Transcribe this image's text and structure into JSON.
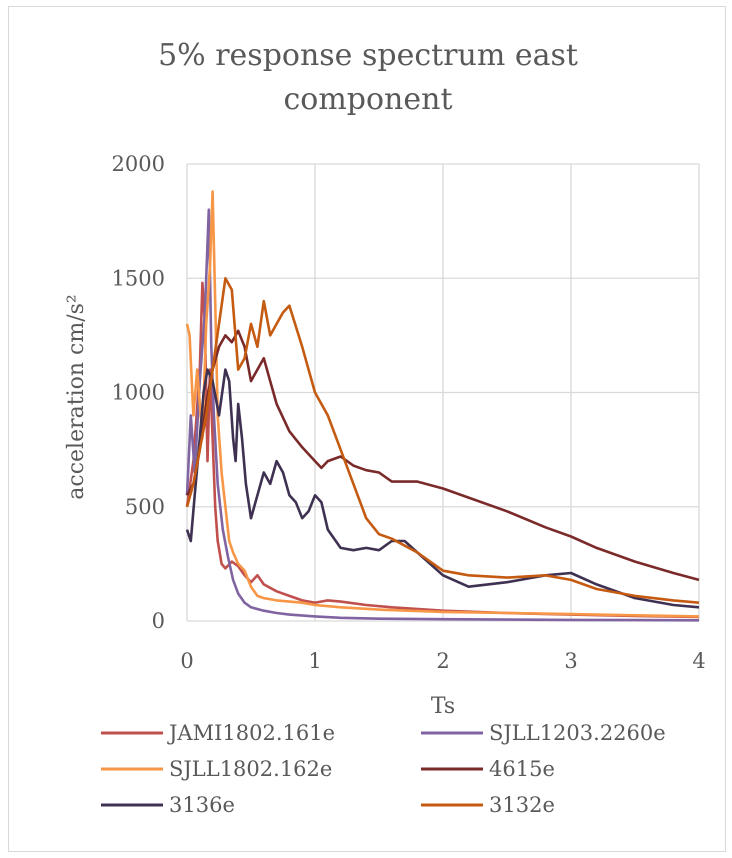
{
  "chart_data": {
    "type": "line",
    "title_lines": [
      "5% response spectrum east",
      "component"
    ],
    "xlabel": "Ts",
    "ylabel": "acceleration  cm/s²",
    "xlim": [
      0,
      4
    ],
    "ylim": [
      0,
      2000
    ],
    "xticks": [
      0,
      1,
      2,
      3,
      4
    ],
    "yticks": [
      0,
      500,
      1000,
      1500,
      2000
    ],
    "grid": true,
    "legend_position": "bottom",
    "series": [
      {
        "name": "JAMI1802.161e",
        "color": "#c0504d",
        "x": [
          0,
          0.05,
          0.1,
          0.12,
          0.14,
          0.16,
          0.18,
          0.2,
          0.22,
          0.24,
          0.27,
          0.3,
          0.35,
          0.4,
          0.45,
          0.5,
          0.55,
          0.6,
          0.7,
          0.8,
          0.9,
          1.0,
          1.1,
          1.2,
          1.4,
          1.6,
          2.0,
          2.5,
          3.0,
          3.5,
          4.0
        ],
        "y": [
          500,
          700,
          1100,
          1480,
          1300,
          700,
          1100,
          800,
          500,
          350,
          250,
          230,
          260,
          240,
          200,
          170,
          200,
          160,
          130,
          110,
          90,
          80,
          90,
          85,
          70,
          60,
          45,
          35,
          28,
          22,
          18
        ]
      },
      {
        "name": "SJLL1203.2260e",
        "color": "#8064a2",
        "x": [
          0,
          0.03,
          0.06,
          0.1,
          0.14,
          0.17,
          0.19,
          0.21,
          0.24,
          0.28,
          0.32,
          0.36,
          0.4,
          0.45,
          0.5,
          0.6,
          0.7,
          0.8,
          1.0,
          1.2,
          1.5,
          2.0,
          2.5,
          3.0,
          3.5,
          4.0
        ],
        "y": [
          550,
          900,
          650,
          1050,
          1350,
          1800,
          1200,
          900,
          600,
          400,
          280,
          180,
          120,
          80,
          60,
          45,
          35,
          28,
          20,
          14,
          10,
          8,
          6,
          5,
          4,
          3
        ]
      },
      {
        "name": "SJLL1802.162e",
        "color": "#f79646",
        "x": [
          0,
          0.02,
          0.05,
          0.08,
          0.12,
          0.15,
          0.18,
          0.2,
          0.22,
          0.24,
          0.27,
          0.3,
          0.33,
          0.36,
          0.4,
          0.45,
          0.5,
          0.55,
          0.6,
          0.7,
          0.8,
          0.9,
          1.0,
          1.2,
          1.5,
          2.0,
          2.5,
          3.0,
          3.5,
          4.0
        ],
        "y": [
          1300,
          1250,
          900,
          1100,
          800,
          1300,
          1550,
          1880,
          1400,
          900,
          650,
          500,
          350,
          300,
          250,
          220,
          150,
          110,
          100,
          90,
          85,
          80,
          70,
          60,
          50,
          40,
          35,
          30,
          25,
          20
        ]
      },
      {
        "name": "4615e",
        "color": "#7b2a2a",
        "x": [
          0,
          0.05,
          0.1,
          0.15,
          0.2,
          0.25,
          0.3,
          0.35,
          0.4,
          0.45,
          0.5,
          0.55,
          0.6,
          0.65,
          0.7,
          0.8,
          0.9,
          1.0,
          1.05,
          1.1,
          1.2,
          1.3,
          1.4,
          1.5,
          1.6,
          1.8,
          2.0,
          2.2,
          2.5,
          2.8,
          3.0,
          3.2,
          3.5,
          3.8,
          4.0
        ],
        "y": [
          550,
          600,
          750,
          950,
          1100,
          1200,
          1250,
          1220,
          1270,
          1200,
          1050,
          1100,
          1150,
          1050,
          950,
          830,
          760,
          700,
          670,
          700,
          720,
          680,
          660,
          650,
          610,
          610,
          580,
          540,
          480,
          410,
          370,
          320,
          260,
          210,
          180
        ]
      },
      {
        "name": "3136e",
        "color": "#3f3151",
        "x": [
          0,
          0.03,
          0.06,
          0.1,
          0.13,
          0.16,
          0.2,
          0.25,
          0.3,
          0.33,
          0.36,
          0.38,
          0.4,
          0.43,
          0.46,
          0.5,
          0.55,
          0.6,
          0.65,
          0.7,
          0.75,
          0.8,
          0.85,
          0.9,
          0.95,
          1.0,
          1.05,
          1.1,
          1.2,
          1.3,
          1.4,
          1.5,
          1.6,
          1.7,
          1.8,
          2.0,
          2.2,
          2.5,
          2.8,
          3.0,
          3.2,
          3.5,
          3.8,
          4.0
        ],
        "y": [
          400,
          350,
          550,
          800,
          1000,
          1100,
          1050,
          900,
          1100,
          1050,
          800,
          700,
          950,
          800,
          600,
          450,
          550,
          650,
          600,
          700,
          650,
          550,
          520,
          450,
          480,
          550,
          520,
          400,
          320,
          310,
          320,
          310,
          350,
          350,
          300,
          200,
          150,
          170,
          200,
          210,
          160,
          100,
          70,
          60
        ]
      },
      {
        "name": "3132e",
        "color": "#c55a11",
        "x": [
          0,
          0.05,
          0.1,
          0.15,
          0.2,
          0.25,
          0.3,
          0.35,
          0.4,
          0.45,
          0.5,
          0.55,
          0.6,
          0.65,
          0.7,
          0.75,
          0.8,
          0.9,
          1.0,
          1.1,
          1.2,
          1.3,
          1.4,
          1.5,
          1.6,
          1.8,
          2.0,
          2.2,
          2.5,
          2.8,
          3.0,
          3.2,
          3.5,
          3.8,
          4.0
        ],
        "y": [
          500,
          600,
          750,
          900,
          1100,
          1300,
          1500,
          1450,
          1100,
          1150,
          1300,
          1200,
          1400,
          1250,
          1300,
          1350,
          1380,
          1200,
          1000,
          900,
          750,
          600,
          450,
          380,
          360,
          300,
          220,
          200,
          190,
          200,
          180,
          140,
          110,
          90,
          80
        ]
      }
    ]
  }
}
